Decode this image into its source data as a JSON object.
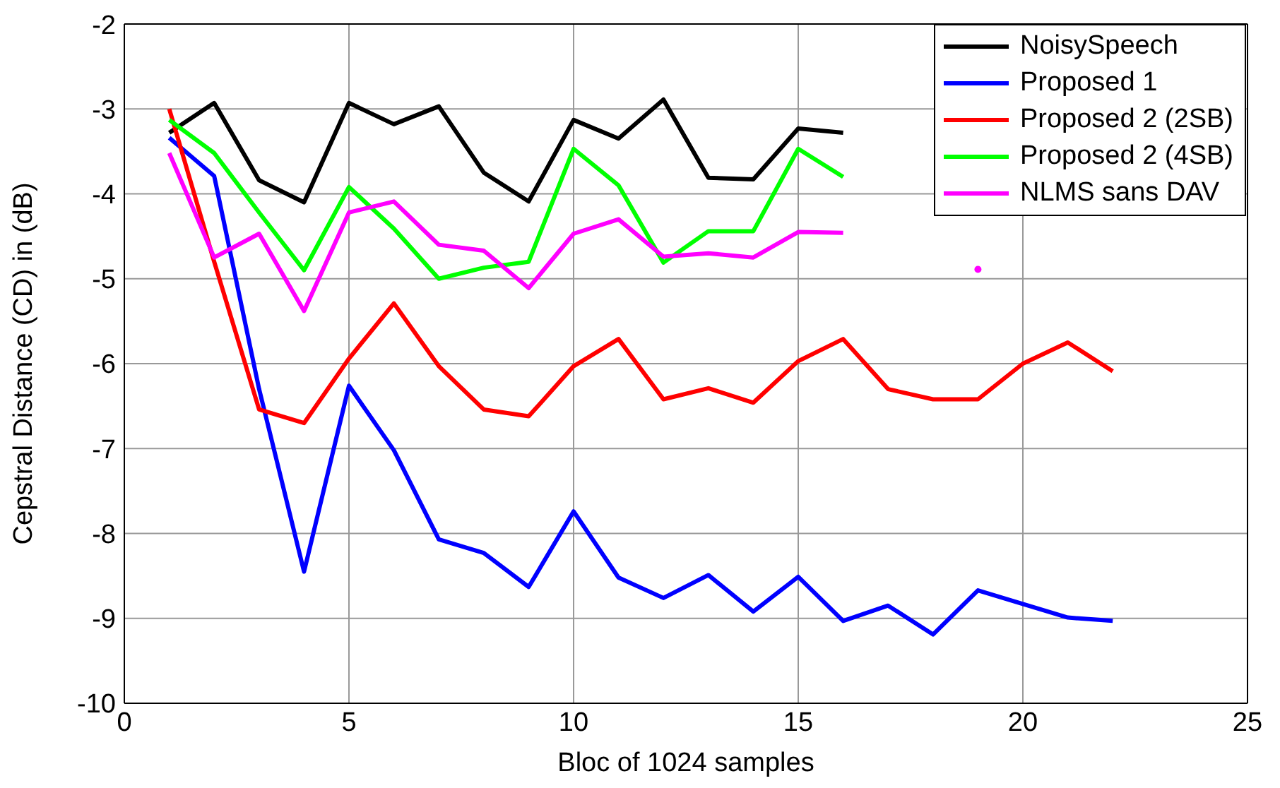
{
  "chart_data": {
    "type": "line",
    "xlabel": "Bloc of 1024 samples",
    "ylabel": "Cepstral Distance (CD) in (dB)",
    "x": [
      1,
      2,
      3,
      4,
      5,
      6,
      7,
      8,
      9,
      10,
      11,
      12,
      13,
      14,
      15,
      16,
      17,
      18,
      19,
      20,
      21,
      22
    ],
    "xlim": [
      0,
      25
    ],
    "xticks": [
      0,
      5,
      10,
      15,
      20,
      25
    ],
    "ylim": [
      -10,
      -2
    ],
    "yticks": [
      -10,
      -9,
      -8,
      -7,
      -6,
      -5,
      -4,
      -3,
      -2
    ],
    "grid": true,
    "legend": "top right",
    "marker": "none",
    "line_style": "solid",
    "series": [
      {
        "name": "NoisySpeech",
        "color": "#000000",
        "values": [
          -3.28,
          -2.93,
          -3.84,
          -4.1,
          -2.93,
          -3.18,
          -2.97,
          -3.75,
          -4.09,
          -3.13,
          -3.35,
          -2.89,
          -3.81,
          -3.83,
          -3.23,
          -3.28,
          null,
          null,
          null,
          null,
          null,
          null
        ]
      },
      {
        "name": "Proposed 1",
        "color": "#0000ff",
        "values": [
          -3.34,
          -3.79,
          -6.3,
          -8.45,
          -6.26,
          -7.02,
          -8.07,
          -8.23,
          -8.63,
          -7.74,
          -8.52,
          -8.76,
          -8.49,
          -8.92,
          -8.51,
          -9.03,
          -8.85,
          -9.19,
          -8.67,
          -8.83,
          -8.99,
          -9.03
        ]
      },
      {
        "name": "Proposed 2 (2SB)",
        "color": "#ff0000",
        "values": [
          -3.0,
          -4.8,
          -6.54,
          -6.7,
          -5.94,
          -5.29,
          -6.03,
          -6.54,
          -6.62,
          -6.03,
          -5.71,
          -6.42,
          -6.29,
          -6.46,
          -5.97,
          -5.71,
          -6.3,
          -6.42,
          -6.42,
          -6.0,
          -5.75,
          -6.09
        ]
      },
      {
        "name": "Proposed 2 (4SB)",
        "color": "#00ff00",
        "values": [
          -3.13,
          -3.52,
          -4.22,
          -4.9,
          -3.92,
          -4.41,
          -5.0,
          -4.87,
          -4.8,
          -3.47,
          -3.9,
          -4.81,
          -4.44,
          -4.44,
          -3.47,
          -3.8,
          null,
          null,
          null,
          null,
          null,
          null
        ]
      },
      {
        "name": "NLMS sans DAV",
        "color": "#ff00ff",
        "values": [
          -3.52,
          -4.75,
          -4.47,
          -5.38,
          -4.22,
          -4.09,
          -4.6,
          -4.67,
          -5.11,
          -4.47,
          -4.3,
          -4.74,
          -4.7,
          -4.75,
          -4.45,
          -4.46,
          null,
          null,
          -4.89,
          null,
          null,
          null
        ]
      }
    ]
  }
}
